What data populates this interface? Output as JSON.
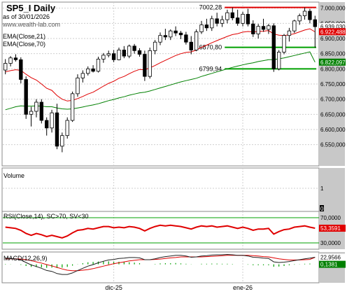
{
  "header": {
    "title": "SP5_I Daily",
    "date": "as of 30/01/2026",
    "website": "www.wealth-lab.com",
    "ema21_label": "EMA(Close,21)",
    "ema70_label": "EMA(Close,70)"
  },
  "chart_data": [
    {
      "type": "candlestick",
      "panel": "price",
      "y_axis_side": "right",
      "ylim": [
        6480,
        7020
      ],
      "y_ticks": [
        "7.000,000",
        "6.950,000",
        "6.900,000",
        "6.850,000",
        "6.800,000",
        "6.750,000",
        "6.700,000",
        "6.650,000",
        "6.600,000",
        "6.550,000"
      ],
      "tick_values": [
        7000,
        6950,
        6900,
        6850,
        6800,
        6750,
        6700,
        6650,
        6600,
        6550
      ],
      "x_labels": [
        {
          "label": "dic-25",
          "bar": 21
        },
        {
          "label": "ene-26",
          "bar": 46
        }
      ],
      "candles": [
        [
          6796,
          6832,
          6782,
          6818
        ],
        [
          6818,
          6842,
          6808,
          6836
        ],
        [
          6836,
          6848,
          6824,
          6830
        ],
        [
          6830,
          6838,
          6752,
          6765
        ],
        [
          6765,
          6775,
          6635,
          6650
        ],
        [
          6650,
          6675,
          6610,
          6660
        ],
        [
          6660,
          6700,
          6640,
          6690
        ],
        [
          6690,
          6700,
          6620,
          6630
        ],
        [
          6630,
          6640,
          6580,
          6605
        ],
        [
          6605,
          6665,
          6590,
          6655
        ],
        [
          6655,
          6685,
          6535,
          6545
        ],
        [
          6545,
          6590,
          6525,
          6580
        ],
        [
          6580,
          6640,
          6570,
          6630
        ],
        [
          6630,
          6725,
          6625,
          6718
        ],
        [
          6718,
          6782,
          6708,
          6770
        ],
        [
          6770,
          6795,
          6755,
          6785
        ],
        [
          6785,
          6808,
          6778,
          6800
        ],
        [
          6800,
          6812,
          6788,
          6792
        ],
        [
          6792,
          6840,
          6788,
          6832
        ],
        [
          6832,
          6852,
          6820,
          6845
        ],
        [
          6845,
          6860,
          6838,
          6850
        ],
        [
          6850,
          6862,
          6822,
          6830
        ],
        [
          6830,
          6870,
          6828,
          6862
        ],
        [
          6862,
          6875,
          6835,
          6842
        ],
        [
          6842,
          6880,
          6835,
          6875
        ],
        [
          6875,
          6882,
          6850,
          6860
        ],
        [
          6860,
          6868,
          6840,
          6848
        ],
        [
          6848,
          6860,
          6760,
          6775
        ],
        [
          6775,
          6870,
          6768,
          6860
        ],
        [
          6860,
          6895,
          6848,
          6888
        ],
        [
          6888,
          6920,
          6878,
          6910
        ],
        [
          6910,
          6932,
          6895,
          6905
        ],
        [
          6905,
          6930,
          6895,
          6925
        ],
        [
          6925,
          6940,
          6908,
          6918
        ],
        [
          6918,
          6925,
          6898,
          6912
        ],
        [
          6912,
          6922,
          6880,
          6888
        ],
        [
          6888,
          6908,
          6848,
          6862
        ],
        [
          6862,
          6930,
          6858,
          6922
        ],
        [
          6922,
          6958,
          6915,
          6945
        ],
        [
          6945,
          6965,
          6925,
          6935
        ],
        [
          6935,
          6975,
          6925,
          6965
        ],
        [
          6965,
          6985,
          6940,
          6950
        ],
        [
          6950,
          6975,
          6938,
          6962
        ],
        [
          6962,
          6995,
          6950,
          6985
        ],
        [
          6985,
          7002,
          6960,
          6968
        ],
        [
          6968,
          6995,
          6942,
          6950
        ],
        [
          6950,
          6988,
          6940,
          6980
        ],
        [
          6980,
          6998,
          6940,
          6948
        ],
        [
          6948,
          6960,
          6905,
          6915
        ],
        [
          6915,
          6948,
          6900,
          6940
        ],
        [
          6940,
          6965,
          6922,
          6930
        ],
        [
          6930,
          6948,
          6915,
          6942
        ],
        [
          6942,
          6950,
          6790,
          6800
        ],
        [
          6800,
          6862,
          6795,
          6855
        ],
        [
          6855,
          6915,
          6848,
          6910
        ],
        [
          6910,
          6935,
          6890,
          6925
        ],
        [
          6925,
          6962,
          6918,
          6958
        ],
        [
          6958,
          6982,
          6945,
          6975
        ],
        [
          6975,
          7002,
          6962,
          6990
        ],
        [
          6990,
          6998,
          6950,
          6962
        ],
        [
          6962,
          6975,
          6870,
          6939
        ]
      ],
      "ema21": [
        6790,
        6794,
        6797,
        6795,
        6782,
        6771,
        6763,
        6750,
        6736,
        6729,
        6712,
        6700,
        6694,
        6696,
        6702,
        6709,
        6717,
        6723,
        6733,
        6743,
        6752,
        6759,
        6769,
        6775,
        6784,
        6792,
        6798,
        6797,
        6803,
        6811,
        6820,
        6828,
        6836,
        6844,
        6850,
        6854,
        6856,
        6862,
        6871,
        6878,
        6886,
        6893,
        6900,
        6907,
        6913,
        6916,
        6921,
        6923,
        6922,
        6923,
        6924,
        6926,
        6915,
        6911,
        6910,
        6912,
        6916,
        6922,
        6928,
        6932,
        6922
      ],
      "ema70": [
        6665,
        6670,
        6675,
        6678,
        6677,
        6677,
        6678,
        6677,
        6675,
        6675,
        6671,
        6668,
        6667,
        6668,
        6671,
        6674,
        6678,
        6681,
        6685,
        6690,
        6695,
        6699,
        6704,
        6708,
        6713,
        6717,
        6721,
        6723,
        6727,
        6732,
        6737,
        6742,
        6747,
        6752,
        6757,
        6761,
        6765,
        6769,
        6775,
        6780,
        6785,
        6790,
        6795,
        6800,
        6805,
        6809,
        6813,
        6817,
        6820,
        6824,
        6827,
        6830,
        6830,
        6833,
        6836,
        6840,
        6844,
        6848,
        6852,
        6856,
        6822
      ],
      "annotations": [
        {
          "label": "7002,28",
          "y": 7002.28,
          "start_bar": 43,
          "color": "#e00000"
        },
        {
          "label": "6870,80",
          "y": 6870.8,
          "start_bar": 43,
          "color": "#00a000"
        },
        {
          "label": "6799,94",
          "y": 6799.94,
          "start_bar": 43,
          "color": "#00a000"
        }
      ],
      "value_tags": [
        {
          "label": "6.939,030",
          "value": 6939.03,
          "bg": "#ffffff",
          "fg": "#000000"
        },
        {
          "label": "6.922,488",
          "value": 6922.488,
          "bg": "#e00000",
          "fg": "#ffffff"
        },
        {
          "label": "6.822,097",
          "value": 6822.097,
          "bg": "#008000",
          "fg": "#ffffff"
        }
      ]
    },
    {
      "type": "bar",
      "panel": "volume",
      "title": "Volume",
      "ylim": [
        0,
        1
      ],
      "y_ticks": [
        "1"
      ],
      "last_value": "0"
    },
    {
      "type": "line",
      "panel": "rsi",
      "title": "RSI(Close,14), SC>70, SV<30",
      "ylim": [
        20,
        80
      ],
      "y_ticks": [
        "70,0000",
        "30,0000"
      ],
      "bands": [
        70,
        30
      ],
      "last_value": "53,3591",
      "values": [
        55,
        54,
        53,
        50,
        45,
        42,
        45,
        43,
        40,
        42,
        40,
        38,
        41,
        46,
        50,
        51,
        53,
        52,
        54,
        56,
        56,
        54,
        55,
        54,
        56,
        55,
        53,
        49,
        53,
        56,
        58,
        57,
        58,
        57,
        56,
        54,
        52,
        55,
        57,
        56,
        57,
        55,
        56,
        57,
        55,
        53,
        55,
        53,
        50,
        52,
        52,
        53,
        44,
        48,
        51,
        52,
        55,
        56,
        57,
        55,
        53.36
      ]
    },
    {
      "type": "line",
      "panel": "macd",
      "title": "MACD(12,26,9)",
      "ylim": [
        -60,
        40
      ],
      "last_value": "22,9566",
      "last_hist": "0,1381",
      "macd": [
        20,
        19,
        18,
        14,
        6,
        -2,
        -7,
        -13,
        -20,
        -23,
        -30,
        -33,
        -33,
        -28,
        -20,
        -13,
        -6,
        -1,
        5,
        10,
        14,
        16,
        19,
        20,
        22,
        22,
        21,
        15,
        15,
        18,
        22,
        25,
        27,
        29,
        29,
        27,
        23,
        24,
        27,
        28,
        30,
        31,
        31,
        32,
        31,
        29,
        29,
        27,
        23,
        22,
        20,
        19,
        8,
        6,
        7,
        9,
        12,
        15,
        18,
        20,
        22.96
      ],
      "signal": [
        18,
        18,
        18,
        17,
        15,
        12,
        8,
        4,
        -1,
        -5,
        -10,
        -15,
        -19,
        -21,
        -21,
        -19,
        -17,
        -14,
        -10,
        -6,
        -2,
        2,
        5,
        8,
        11,
        13,
        15,
        15,
        15,
        16,
        17,
        19,
        21,
        22,
        24,
        24,
        24,
        24,
        24,
        25,
        26,
        27,
        28,
        29,
        29,
        29,
        29,
        29,
        28,
        27,
        25,
        24,
        21,
        18,
        16,
        14,
        14,
        14,
        15,
        16,
        22.82
      ]
    }
  ]
}
